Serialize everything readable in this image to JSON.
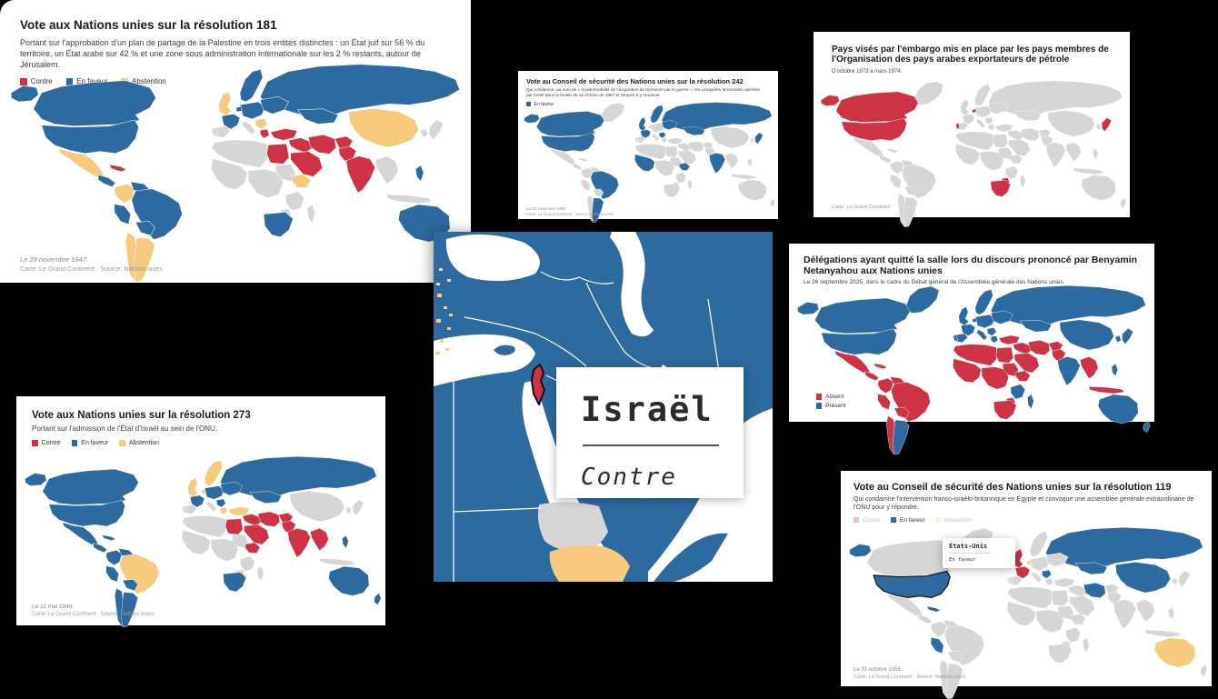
{
  "colors": {
    "contre": "#ce3245",
    "favor": "#2d6a9f",
    "abstain": "#f7ca7e",
    "nodata": "#d6d6d6",
    "sea": "#ffffff",
    "border": "#ffffff",
    "outline": "#111111",
    "background": "#000000"
  },
  "center": {
    "tooltip": {
      "name": "Israël",
      "vote": "Contre"
    }
  },
  "cards": {
    "res181": {
      "title": "Vote aux Nations unies sur la résolution 181",
      "subtitle": "Portant sur l'approbation d'un plan de partage de la Palestine en trois entités distinctes : un État juif sur 56 % du territoire, un État arabe sur 42 % et une zone sous administration internationale sur les 2 % restants, autour de Jérusalem.",
      "legend": [
        {
          "label": "Contre",
          "key": "contre"
        },
        {
          "label": "En faveur",
          "key": "favor"
        },
        {
          "label": "Abstention",
          "key": "abstain"
        }
      ],
      "date": "Le 29 novembre 1947.",
      "credit": "Carte: Le Grand Continent · Source: Nations unies",
      "regions": {
        "greenland": "none",
        "alaska": "favor",
        "canada": "favor",
        "usa": "favor",
        "mexico": "abstain",
        "centralamerica": "favor",
        "cuba": "contre",
        "colombia": "abstain",
        "venezuela": "favor",
        "peru": "favor",
        "brazil": "favor",
        "bolivia": "favor",
        "chile": "abstain",
        "argentina": "abstain",
        "russia": "favor",
        "centralasia": "favor",
        "scandinavia": "favor",
        "uk": "abstain",
        "france": "favor",
        "iberia": "nodata",
        "portugal": "nodata",
        "centraleurope": "favor",
        "lowcountries": "favor",
        "italy": "nodata",
        "balkans": "abstain",
        "greece": "contre",
        "easteurope": "favor",
        "turkey": "contre",
        "levant": "contre",
        "saudi": "contre",
        "iran": "contre",
        "afghanistan": "contre",
        "pakistan": "contre",
        "india": "contre",
        "china": "abstain",
        "seasia": "nodata",
        "indonesia": "nodata",
        "philippines": "favor",
        "japan": "nodata",
        "korea": "nodata",
        "northafrica": "nodata",
        "egypt": "contre",
        "westafrica": "nodata",
        "centralafrica": "nodata",
        "sudan": "nodata",
        "ethiopia": "abstain",
        "eastafrica": "nodata",
        "rhodesia": "nodata",
        "southafrica": "favor",
        "madagascar": "nodata",
        "australia": "favor",
        "newzealand": "favor"
      }
    },
    "res242": {
      "title": "Vote au Conseil de sécurité des Nations unies sur la résolution 242",
      "subtitle": "Qui condamne, au nom de « l'inadmissibilité de l'acquisition de territoires par la guerre », les conquêtes territoriales opérées par Israël dans la foulée de sa victoire de 1967 et l'enjoint à y renoncer.",
      "legend": [
        {
          "label": "En faveur",
          "key": "favor"
        }
      ],
      "date": "Le 22 novembre 1967.",
      "credit": "Carte: Le Grand Continent · Source: Nations unies",
      "regions": {
        "alaska": "favor",
        "canada": "favor",
        "usa": "favor",
        "brazil": "favor",
        "argentina": "favor",
        "russia": "favor",
        "centralasia": "favor",
        "scandinavia": "favor",
        "uk": "favor",
        "france": "favor",
        "balkans": "favor",
        "easteurope": "favor",
        "india": "favor",
        "japan": "favor",
        "ethiopia": "favor",
        "westafrica": "favor"
      }
    },
    "embargo": {
      "title": "Pays visés par l'embargo mis en place par les pays membres de l'Organisation des pays arabes exportateurs de pétrole",
      "subtitle": "D'octobre 1973 à mars 1974.",
      "legend": [],
      "credit": "Carte: Le Grand Continent",
      "regions": {
        "alaska": "contre",
        "canada": "contre",
        "usa": "contre",
        "portugal": "contre",
        "lowcountries": "contre",
        "japan": "contre",
        "rhodesia": "contre",
        "southafrica": "contre"
      }
    },
    "netanyahou": {
      "title": "Délégations ayant quitté la salle lors du discours prononcé par Benyamin Netanyahou aux Nations unies",
      "subtitle": "Le 26 septembre 2025, dans le cadre du Débat général de l'Assemblée générale des Nations unies.",
      "legend": [
        {
          "label": "Absent",
          "key": "contre"
        },
        {
          "label": "Présent",
          "key": "favor"
        }
      ],
      "regions": {
        "greenland": "favor",
        "alaska": "favor",
        "canada": "favor",
        "usa": "favor",
        "mexico": "contre",
        "centralamerica": "contre",
        "cuba": "contre",
        "colombia": "contre",
        "venezuela": "contre",
        "peru": "contre",
        "brazil": "contre",
        "bolivia": "contre",
        "chile": "contre",
        "argentina": "favor",
        "russia": "favor",
        "centralasia": "favor",
        "scandinavia": "favor",
        "uk": "favor",
        "france": "favor",
        "iberia": "favor",
        "portugal": "favor",
        "centraleurope": "favor",
        "lowcountries": "favor",
        "italy": "favor",
        "balkans": "favor",
        "greece": "favor",
        "easteurope": "favor",
        "turkey": "contre",
        "levant": "contre",
        "saudi": "contre",
        "iran": "contre",
        "afghanistan": "contre",
        "pakistan": "contre",
        "india": "favor",
        "china": "favor",
        "seasia": "contre",
        "indonesia": "contre",
        "philippines": "favor",
        "japan": "favor",
        "korea": "favor",
        "northafrica": "contre",
        "egypt": "contre",
        "westafrica": "contre",
        "centralafrica": "contre",
        "sudan": "contre",
        "ethiopia": "contre",
        "eastafrica": "favor",
        "rhodesia": "contre",
        "southafrica": "contre",
        "madagascar": "favor",
        "australia": "favor",
        "newzealand": "favor"
      }
    },
    "res273": {
      "title": "Vote aux Nations unies sur la résolution 273",
      "subtitle": "Portant sur l'admission de l'État d'Israël au sein de l'ONU.",
      "legend": [
        {
          "label": "Contre",
          "key": "contre"
        },
        {
          "label": "En faveur",
          "key": "favor"
        },
        {
          "label": "Abstention",
          "key": "abstain"
        }
      ],
      "date": "Le 11 mai 1949.",
      "credit": "Carte: Le Grand Continent · Source: Nations unies",
      "regions": {
        "greenland": "none",
        "alaska": "favor",
        "canada": "favor",
        "usa": "favor",
        "mexico": "favor",
        "centralamerica": "favor",
        "cuba": "favor",
        "colombia": "favor",
        "venezuela": "favor",
        "peru": "favor",
        "brazil": "abstain",
        "bolivia": "favor",
        "chile": "favor",
        "argentina": "favor",
        "russia": "favor",
        "centralasia": "favor",
        "scandinavia": "abstain",
        "uk": "abstain",
        "france": "favor",
        "iberia": "nodata",
        "portugal": "nodata",
        "centraleurope": "favor",
        "lowcountries": "abstain",
        "italy": "nodata",
        "balkans": "favor",
        "greece": "abstain",
        "easteurope": "favor",
        "turkey": "abstain",
        "levant": "contre",
        "saudi": "contre",
        "iran": "contre",
        "afghanistan": "contre",
        "pakistan": "contre",
        "india": "contre",
        "china": "nodata",
        "seasia": "contre",
        "indonesia": "nodata",
        "philippines": "favor",
        "japan": "nodata",
        "korea": "nodata",
        "northafrica": "nodata",
        "egypt": "contre",
        "westafrica": "nodata",
        "centralafrica": "nodata",
        "sudan": "nodata",
        "ethiopia": "contre",
        "eastafrica": "nodata",
        "rhodesia": "nodata",
        "southafrica": "favor",
        "madagascar": "nodata",
        "australia": "favor",
        "newzealand": "favor"
      }
    },
    "res119": {
      "title": "Vote au Conseil de sécurité des Nations unies sur la résolution 119",
      "subtitle": "Qui condamne l'intervention franco-israélo-britannique en Égypte et convoque une assemblée générale extraordinaire de l'ONU pour y répondre.",
      "legend": [
        {
          "label": "Contre",
          "key": "contre",
          "dim": true
        },
        {
          "label": "En faveur",
          "key": "favor"
        },
        {
          "label": "Abstention",
          "key": "abstain",
          "dim": true
        }
      ],
      "date": "Le 31 octobre 1956.",
      "credit": "Carte: Le Grand Continent · Source: Nations unies",
      "tooltip": {
        "name": "États-Unis",
        "vote": "En faveur"
      },
      "outlined": [
        "usa"
      ],
      "regions": {
        "alaska": "favor",
        "usa": "favor",
        "cuba": "favor",
        "peru": "favor",
        "russia": "favor",
        "centralasia": "favor",
        "china": "favor",
        "iran": "favor",
        "balkans": "favor",
        "france": "contre",
        "uk": "contre",
        "australia": "abstain",
        "lowcountries": "abstain"
      }
    }
  }
}
